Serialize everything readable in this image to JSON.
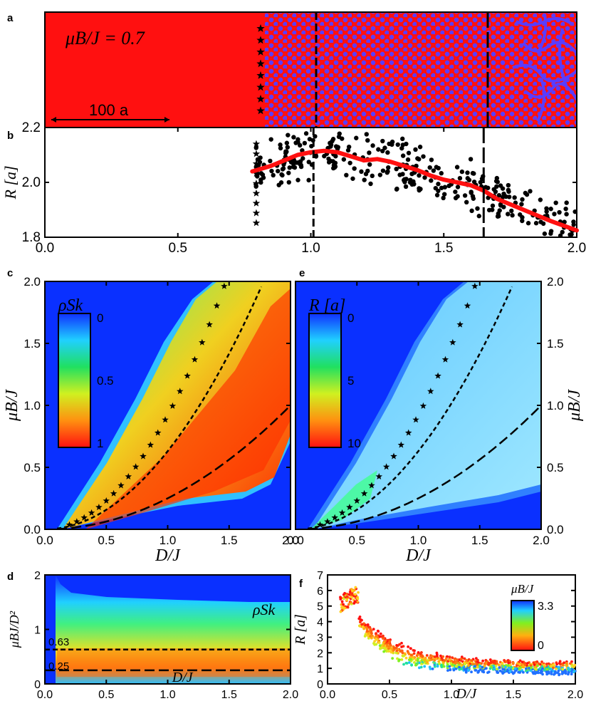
{
  "panel_labels": {
    "a": "a",
    "b": "b",
    "c": "c",
    "d": "d",
    "e": "e",
    "f": "f"
  },
  "panel_a": {
    "annotation": "μB/J = 0.7",
    "scale_bar": "100 a",
    "colors": {
      "background": "#ff1010",
      "skyrmion": "#5a3cff"
    }
  },
  "colorbar_c": {
    "label": "ρSk",
    "ticks": [
      "0",
      "0.5",
      "1"
    ]
  },
  "colorbar_e": {
    "label": "R [a]",
    "ticks": [
      "0",
      "5",
      "10"
    ]
  },
  "colorbar_f": {
    "label": "μB/J",
    "ticks": [
      "3.3",
      "0"
    ]
  },
  "annot_d": {
    "label": "ρSk",
    "line1": "0.63",
    "line2": "0.25"
  },
  "chart_data": [
    {
      "panel": "b",
      "type": "scatter",
      "xlabel": "",
      "ylabel": "R [a]",
      "xlim": [
        0.0,
        2.0
      ],
      "ylim": [
        1.8,
        2.2
      ],
      "xticks": [
        "0.0",
        "0.5",
        "1.0",
        "1.5",
        "2.0"
      ],
      "yticks": [
        "1.8",
        "2.0",
        "2.2"
      ],
      "vlines": [
        0.8,
        1.01,
        1.65
      ],
      "trend": {
        "x": [
          0.78,
          0.85,
          0.9,
          0.95,
          1.0,
          1.05,
          1.1,
          1.15,
          1.2,
          1.25,
          1.3,
          1.35,
          1.4,
          1.45,
          1.5,
          1.55,
          1.6,
          1.65,
          1.7,
          1.8,
          1.9,
          2.0
        ],
        "y": [
          2.04,
          2.06,
          2.08,
          2.1,
          2.11,
          2.115,
          2.11,
          2.095,
          2.08,
          2.085,
          2.075,
          2.06,
          2.045,
          2.025,
          2.01,
          2.0,
          1.99,
          1.97,
          1.94,
          1.9,
          1.86,
          1.825
        ]
      }
    },
    {
      "panel": "c",
      "type": "heatmap",
      "xlabel": "D/J",
      "ylabel": "μB/J",
      "xlim": [
        0.0,
        2.0
      ],
      "ylim": [
        0.0,
        2.0
      ],
      "xticks": [
        "0.0",
        "0.5",
        "1.0",
        "1.5",
        "2.0"
      ],
      "yticks": [
        "0.0",
        "0.5",
        "1.0",
        "1.5",
        "2.0"
      ]
    },
    {
      "panel": "e",
      "type": "heatmap",
      "xlabel": "D/J",
      "ylabel": "μB/J",
      "xlim": [
        0.0,
        2.0
      ],
      "ylim": [
        0.0,
        2.0
      ],
      "xticks": [
        "0.0",
        "0.5",
        "1.0",
        "1.5",
        "2.0"
      ],
      "yticks": [
        "0.0",
        "0.5",
        "1.0",
        "1.5",
        "2.0"
      ]
    },
    {
      "panel": "d",
      "type": "heatmap",
      "xlabel": "D/J",
      "ylabel": "μBJ/D²",
      "xlim": [
        0.0,
        2.0
      ],
      "ylim": [
        0,
        2
      ],
      "xticks": [
        "0.0",
        "0.5",
        "1.0",
        "1.5",
        "2.0"
      ],
      "yticks": [
        "0",
        "1",
        "2"
      ],
      "hlines": [
        0.63,
        0.25
      ]
    },
    {
      "panel": "f",
      "type": "scatter",
      "xlabel": "D/J",
      "ylabel": "R [a]",
      "xlim": [
        0.0,
        2.0
      ],
      "ylim": [
        0,
        7
      ],
      "xticks": [
        "0.0",
        "0.5",
        "1.0",
        "1.5",
        "2.0"
      ],
      "yticks": [
        "0",
        "1",
        "2",
        "3",
        "4",
        "5",
        "6",
        "7"
      ]
    }
  ]
}
